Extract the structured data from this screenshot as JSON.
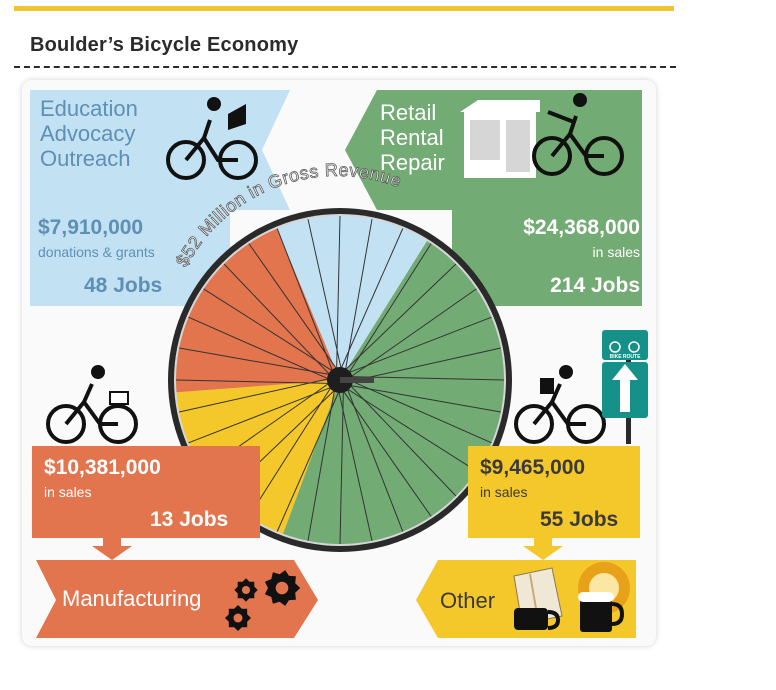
{
  "title": "Boulder’s Bicycle Economy",
  "wheel_label": "$52 Million in Gross Revenue",
  "sign_text": "BIKE ROUTE",
  "colors": {
    "blue": "#c2e2f4",
    "green": "#73ab74",
    "orange": "#e2744e",
    "yellow": "#f4c72a",
    "blue_text": "#5f8fb4",
    "green_text": "#ffffff",
    "orange_text": "#ffffff",
    "yellow_text": "#3a3a3a"
  },
  "chart_data": {
    "type": "pie",
    "title": "$52 Million in Gross Revenue",
    "segments": [
      {
        "category": "Education Advocacy Outreach",
        "amount": "$7,910,000",
        "amount_value": 7910000,
        "detail": "donations & grants",
        "jobs": "48 Jobs",
        "jobs_value": 48,
        "color": "#c2e2f4"
      },
      {
        "category": "Retail Rental Repair",
        "amount": "$24,368,000",
        "amount_value": 24368000,
        "detail": "in sales",
        "jobs": "214 Jobs",
        "jobs_value": 214,
        "color": "#73ab74"
      },
      {
        "category": "Other",
        "amount": "$9,465,000",
        "amount_value": 9465000,
        "detail": "in sales",
        "jobs": "55 Jobs",
        "jobs_value": 55,
        "color": "#f4c72a"
      },
      {
        "category": "Manufacturing",
        "amount": "$10,381,000",
        "amount_value": 10381000,
        "detail": "in sales",
        "jobs": "13 Jobs",
        "jobs_value": 13,
        "color": "#e2744e"
      }
    ]
  },
  "panels": {
    "education": {
      "line1": "Education",
      "line2": "Advocacy",
      "line3": "Outreach",
      "amount": "$7,910,000",
      "detail": "donations & grants",
      "jobs": "48 Jobs"
    },
    "retail": {
      "line1": "Retail",
      "line2": "Rental",
      "line3": "Repair",
      "amount": "$24,368,000",
      "detail": "in sales",
      "jobs": "214 Jobs"
    },
    "manufacturing": {
      "label": "Manufacturing",
      "amount": "$10,381,000",
      "detail": "in sales",
      "jobs": "13 Jobs"
    },
    "other": {
      "label": "Other",
      "amount": "$9,465,000",
      "detail": "in sales",
      "jobs": "55 Jobs"
    }
  }
}
